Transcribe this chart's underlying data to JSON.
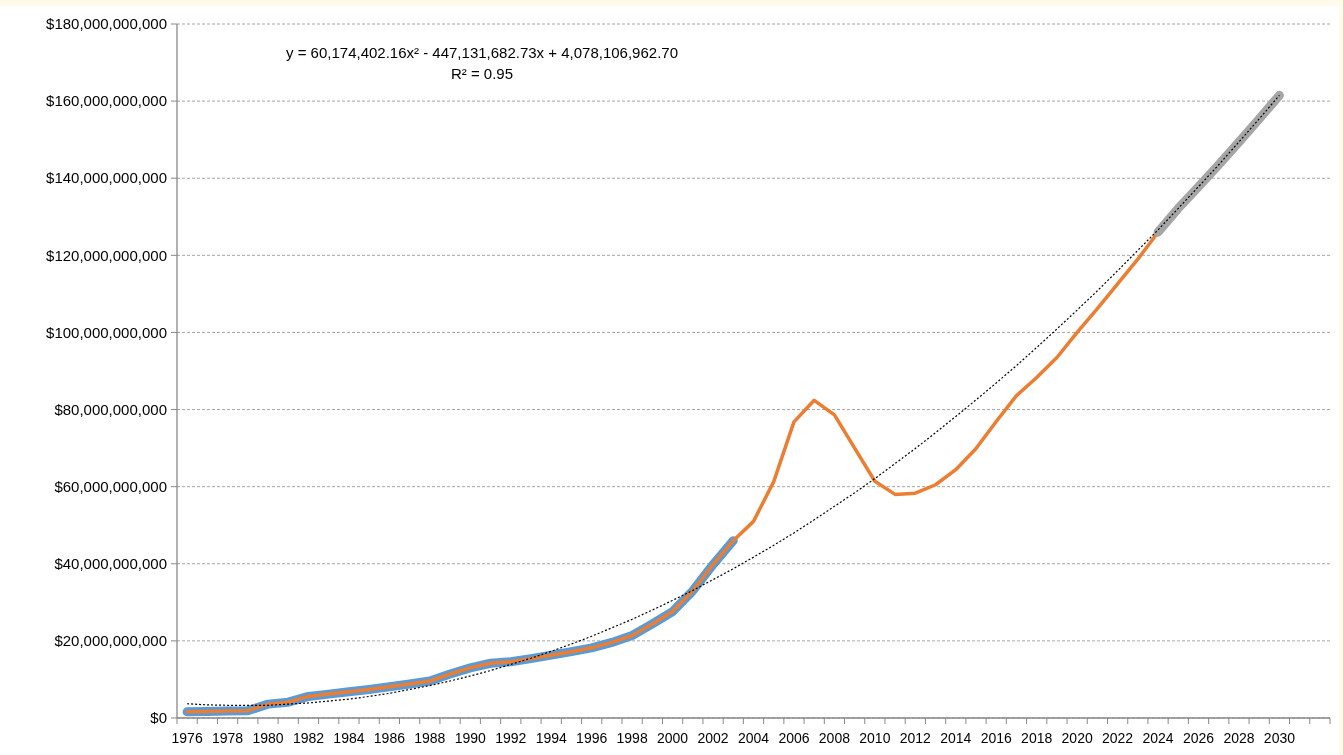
{
  "chart_data": {
    "type": "line",
    "categories": [
      "1976",
      null,
      "1978",
      null,
      "1980",
      null,
      "1982",
      null,
      "1984",
      null,
      "1986",
      null,
      "1988",
      null,
      "1990",
      null,
      "1992",
      null,
      "1994",
      null,
      "1996",
      null,
      "1998",
      null,
      "2000",
      null,
      "2002",
      null,
      "2004",
      null,
      "2006",
      null,
      "2008",
      null,
      "2010",
      null,
      "2012",
      null,
      "2014",
      null,
      "2016",
      null,
      "2018",
      null,
      "2020",
      null,
      "2022",
      null,
      "2024",
      null,
      "2026",
      null,
      "2028",
      null,
      "2030",
      null,
      null
    ],
    "series": [
      {
        "color": "#5b9bd5",
        "values": [
          1600000000.0,
          1700000000.0,
          1800000000.0,
          1900000000.0,
          3600000000.0,
          4100000000.0,
          5600000000.0,
          6200000000.0,
          6800000000.0,
          7400000000.0,
          8100000000.0,
          8800000000.0,
          9600000000.0,
          11400000000.0,
          13000000000.0,
          14200000000.0,
          14600000000.0,
          15400000000.0,
          16300000000.0,
          17200000000.0,
          18200000000.0,
          19600000000.0,
          21400000000.0,
          24400000000.0,
          27600000000.0,
          33000000000.0,
          39800000000.0,
          46000000000.0,
          null,
          null,
          null,
          null,
          null,
          null,
          null,
          null,
          null,
          null,
          null,
          null,
          null,
          null,
          null,
          null,
          null,
          null,
          null,
          null,
          null,
          null,
          null,
          null,
          null,
          null,
          null,
          null,
          null
        ]
      },
      {
        "color": "#ed7d31",
        "values": [
          1600000000.0,
          1700000000.0,
          1800000000.0,
          1900000000.0,
          3600000000.0,
          4100000000.0,
          5600000000.0,
          6200000000.0,
          6800000000.0,
          7400000000.0,
          8100000000.0,
          8800000000.0,
          9600000000.0,
          11400000000.0,
          13000000000.0,
          14200000000.0,
          14600000000.0,
          15400000000.0,
          16300000000.0,
          17200000000.0,
          18200000000.0,
          19600000000.0,
          21400000000.0,
          24400000000.0,
          27600000000.0,
          33000000000.0,
          39800000000.0,
          46000000000.0,
          51000000000.0,
          61300000000.0,
          76800000000.0,
          82400000000.0,
          78600000000.0,
          70000000000.0,
          61400000000.0,
          58000000000.0,
          58300000000.0,
          60500000000.0,
          64400000000.0,
          69900000000.0,
          76900000000.0,
          83600000000.0,
          88300000000.0,
          93500000000.0,
          100000000000.0,
          106200000000.0,
          112600000000.0,
          119000000000.0,
          126000000000.0,
          null,
          null,
          null,
          null,
          null,
          null,
          null,
          null
        ]
      },
      {
        "color": "#a5a5a5",
        "values": [
          null,
          null,
          null,
          null,
          null,
          null,
          null,
          null,
          null,
          null,
          null,
          null,
          null,
          null,
          null,
          null,
          null,
          null,
          null,
          null,
          null,
          null,
          null,
          null,
          null,
          null,
          null,
          null,
          null,
          null,
          null,
          null,
          null,
          null,
          null,
          null,
          null,
          null,
          null,
          null,
          null,
          null,
          null,
          null,
          null,
          null,
          null,
          null,
          126000000000.0,
          132200000000.0,
          137800000000.0,
          143500000000.0,
          149400000000.0,
          155400000000.0,
          161500000000.0,
          null,
          null
        ]
      },
      {
        "color": "#000000",
        "line_style": "dotted",
        "values": [
          3700000000.0,
          3400000000.0,
          3300000000.0,
          3300000000.0,
          3300000000.0,
          3600000000.0,
          3900000000.0,
          4400000000.0,
          4900000000.0,
          5600000000.0,
          6400000000.0,
          7400000000.0,
          8400000000.0,
          9600000000.0,
          10900000000.0,
          12300000000.0,
          13900000000.0,
          15500000000.0,
          17300000000.0,
          19200000000.0,
          21200000000.0,
          23400000000.0,
          25600000000.0,
          28000000000.0,
          30500000000.0,
          33100000000.0,
          35900000000.0,
          38700000000.0,
          41700000000.0,
          44800000000.0,
          48000000000.0,
          51400000000.0,
          54900000000.0,
          58400000000.0,
          62100000000.0,
          66000000000.0,
          69900000000.0,
          74000000000.0,
          78200000000.0,
          82500000000.0,
          86900000000.0,
          91400000000.0,
          96100000000.0,
          100900000000.0,
          105800000000.0,
          110800000000.0,
          116000000000.0,
          121300000000.0,
          126600000000.0,
          132200000000.0,
          137800000000.0,
          143500000000.0,
          149400000000.0,
          155400000000.0,
          161500000000.0,
          null,
          null
        ]
      }
    ],
    "ylim": [
      0,
      180000000000
    ],
    "yticks": [
      {
        "value": 0,
        "label": "$0"
      },
      {
        "value": 20000000000,
        "label": "$20,000,000,000"
      },
      {
        "value": 40000000000,
        "label": "$40,000,000,000"
      },
      {
        "value": 60000000000,
        "label": "$60,000,000,000"
      },
      {
        "value": 80000000000,
        "label": "$80,000,000,000"
      },
      {
        "value": 100000000000,
        "label": "$100,000,000,000"
      },
      {
        "value": 120000000000,
        "label": "$120,000,000,000"
      },
      {
        "value": 140000000000,
        "label": "$140,000,000,000"
      },
      {
        "value": 160000000000,
        "label": "$160,000,000,000"
      },
      {
        "value": 180000000000,
        "label": "$180,000,000,000"
      }
    ],
    "grid": "y",
    "marker": "none",
    "annotations": [
      "y = 60,174,402.16x² - 447,131,682.73x + 4,078,106,962.70",
      "R² = 0.95"
    ]
  }
}
